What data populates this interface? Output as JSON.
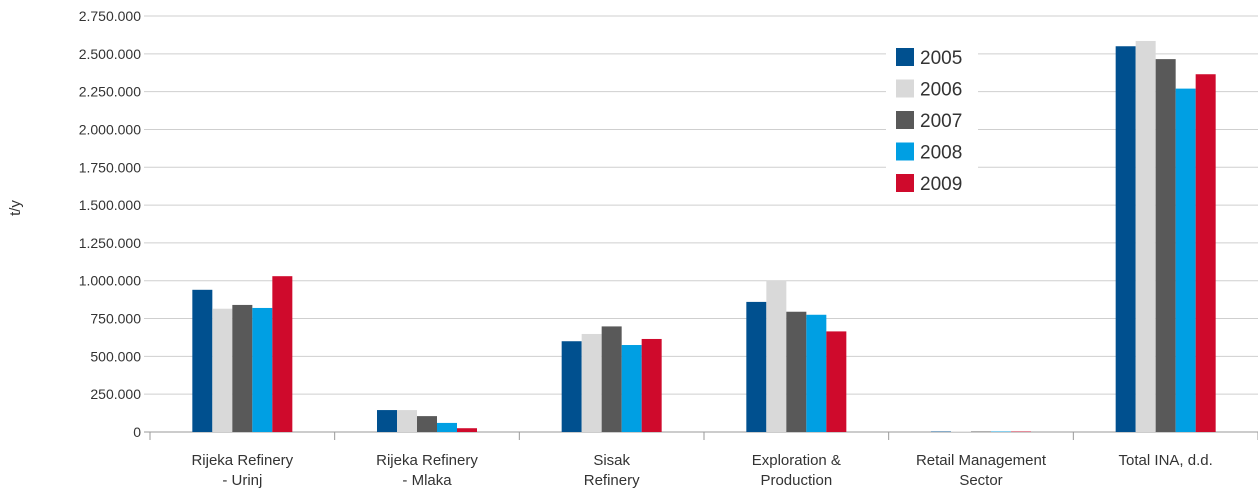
{
  "chart_data": {
    "type": "bar",
    "ylabel": "t/y",
    "xlabel": "",
    "ylim": [
      0,
      2750000
    ],
    "ytick_step": 250000,
    "ytick_labels": [
      "0",
      "250.000",
      "500.000",
      "750.000",
      "1.000.000",
      "1.250.000",
      "1.500.000",
      "1.750.000",
      "2.000.000",
      "2.250.000",
      "2.500.000",
      "2.750.000"
    ],
    "categories": [
      [
        "Rijeka Refinery",
        "- Urinj"
      ],
      [
        "Rijeka Refinery",
        "- Mlaka"
      ],
      [
        "Sisak",
        "Refinery"
      ],
      [
        "Exploration &",
        "Production"
      ],
      [
        "Retail Management",
        "Sector"
      ],
      [
        "Total INA, d.d."
      ]
    ],
    "series": [
      {
        "name": "2005",
        "color": "#00508f",
        "values": [
          940000,
          145000,
          600000,
          860000,
          3000,
          2550000
        ]
      },
      {
        "name": "2006",
        "color": "#d9d9d9",
        "values": [
          815000,
          145000,
          648000,
          1000000,
          3000,
          2585000
        ]
      },
      {
        "name": "2007",
        "color": "#595959",
        "values": [
          840000,
          105000,
          698000,
          795000,
          3000,
          2465000
        ]
      },
      {
        "name": "2008",
        "color": "#009fe3",
        "values": [
          820000,
          60000,
          575000,
          775000,
          3000,
          2270000
        ]
      },
      {
        "name": "2009",
        "color": "#cf0a2c",
        "values": [
          1030000,
          25000,
          615000,
          665000,
          3000,
          2365000
        ]
      }
    ],
    "grid": true,
    "legend_position": "top-right"
  }
}
